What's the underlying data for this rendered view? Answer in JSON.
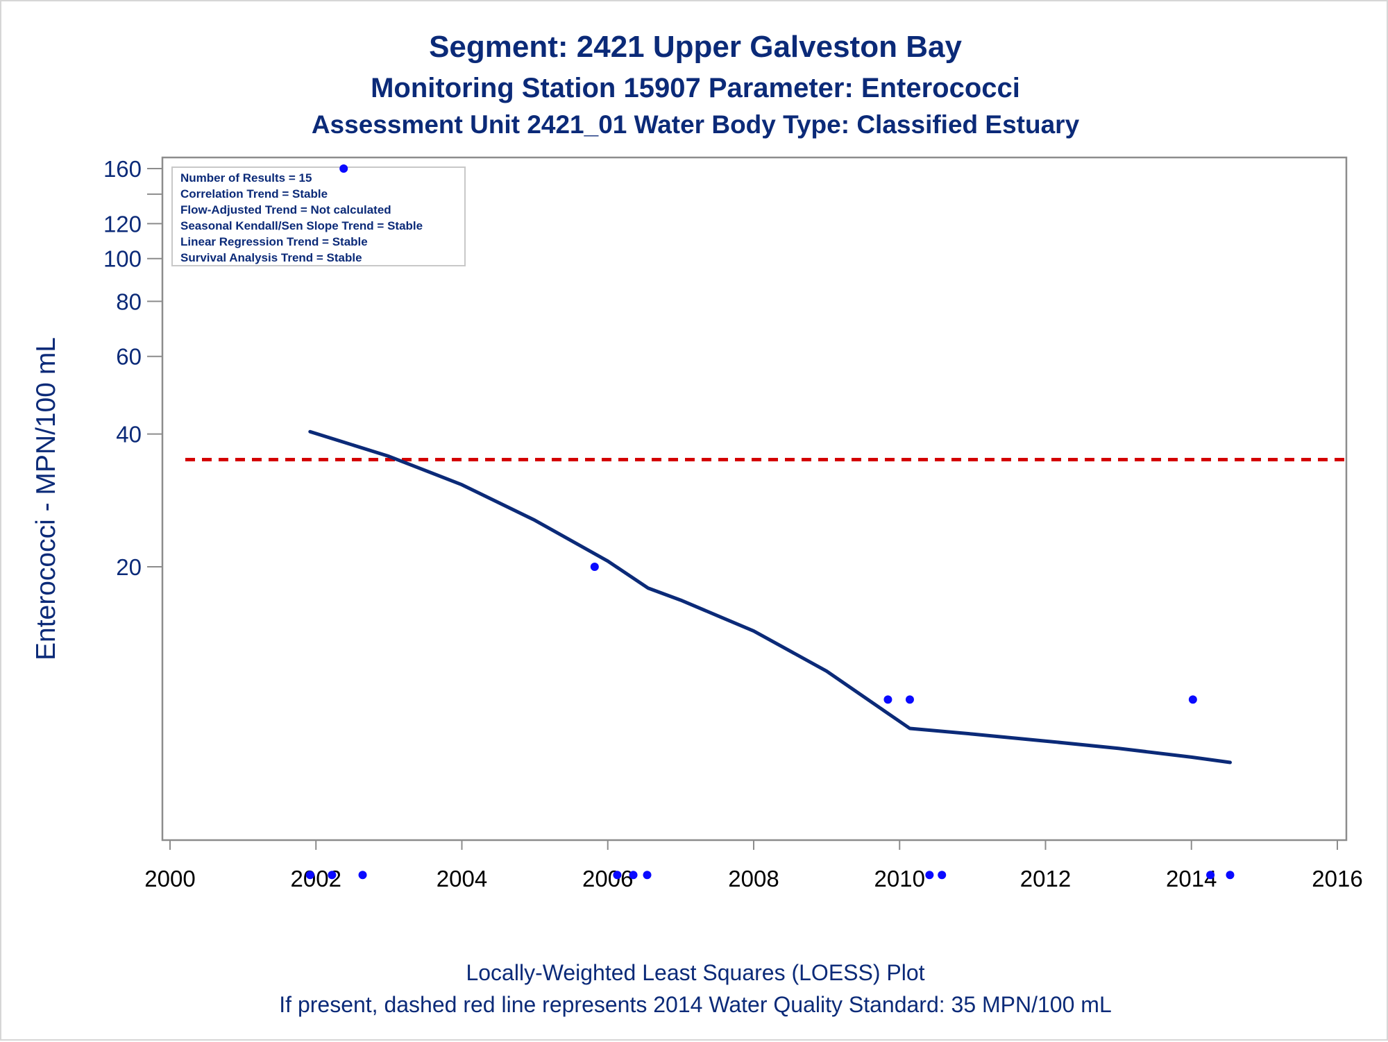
{
  "titles": {
    "line1": "Segment: 2421  Upper Galveston Bay",
    "line2": "Monitoring Station 15907 Parameter: Enterococci",
    "line3": "Assessment Unit 2421_01   Water Body Type: Classified Estuary"
  },
  "stats_box": [
    "Number of Results = 15",
    "Correlation Trend = Stable",
    "Flow-Adjusted Trend = Not calculated",
    "Seasonal Kendall/Sen Slope Trend = Stable",
    "Linear Regression Trend = Stable",
    "Survival Analysis Trend = Stable"
  ],
  "footnotes": {
    "line1": "Locally-Weighted Least Squares (LOESS) Plot",
    "line2": "If present, dashed red line represents 2014 Water Quality Standard: 35 MPN/100 mL"
  },
  "colors": {
    "text": "#0b2a78",
    "points": "#0a0aff",
    "loess": "#0b2a78",
    "standard_line": "#d40000",
    "axis": "#8c8c8c"
  },
  "chart_data": {
    "type": "scatter",
    "ylabel": "Enterococci - MPN/100 mL",
    "xlabel": "",
    "y_scale": "log",
    "xlim": [
      2000,
      2016
    ],
    "ylim": [
      4,
      165
    ],
    "x_ticks": [
      2000,
      2002,
      2004,
      2006,
      2008,
      2010,
      2012,
      2014,
      2016
    ],
    "y_ticks": [
      20,
      40,
      60,
      80,
      100,
      120,
      160
    ],
    "points": [
      {
        "x": 2001.92,
        "y": 4
      },
      {
        "x": 2002.22,
        "y": 4
      },
      {
        "x": 2002.38,
        "y": 160
      },
      {
        "x": 2002.64,
        "y": 4
      },
      {
        "x": 2005.82,
        "y": 20
      },
      {
        "x": 2006.13,
        "y": 4
      },
      {
        "x": 2006.35,
        "y": 4
      },
      {
        "x": 2006.54,
        "y": 4
      },
      {
        "x": 2009.84,
        "y": 10
      },
      {
        "x": 2010.14,
        "y": 10
      },
      {
        "x": 2010.41,
        "y": 4
      },
      {
        "x": 2010.58,
        "y": 4
      },
      {
        "x": 2014.02,
        "y": 10
      },
      {
        "x": 2014.26,
        "y": 4
      },
      {
        "x": 2014.53,
        "y": 4
      }
    ],
    "loess": {
      "x": [
        2001.92,
        2003.0,
        2004.0,
        2005.0,
        2006.0,
        2006.55,
        2007.0,
        2008.0,
        2009.0,
        2009.8,
        2010.14,
        2011.0,
        2012.0,
        2013.0,
        2014.0,
        2014.53
      ],
      "y": [
        40.5,
        35.6,
        30.7,
        25.5,
        20.6,
        17.9,
        16.8,
        14.3,
        11.6,
        9.4,
        8.6,
        8.35,
        8.05,
        7.75,
        7.4,
        7.2
      ]
    },
    "standard": {
      "y": 35
    }
  }
}
